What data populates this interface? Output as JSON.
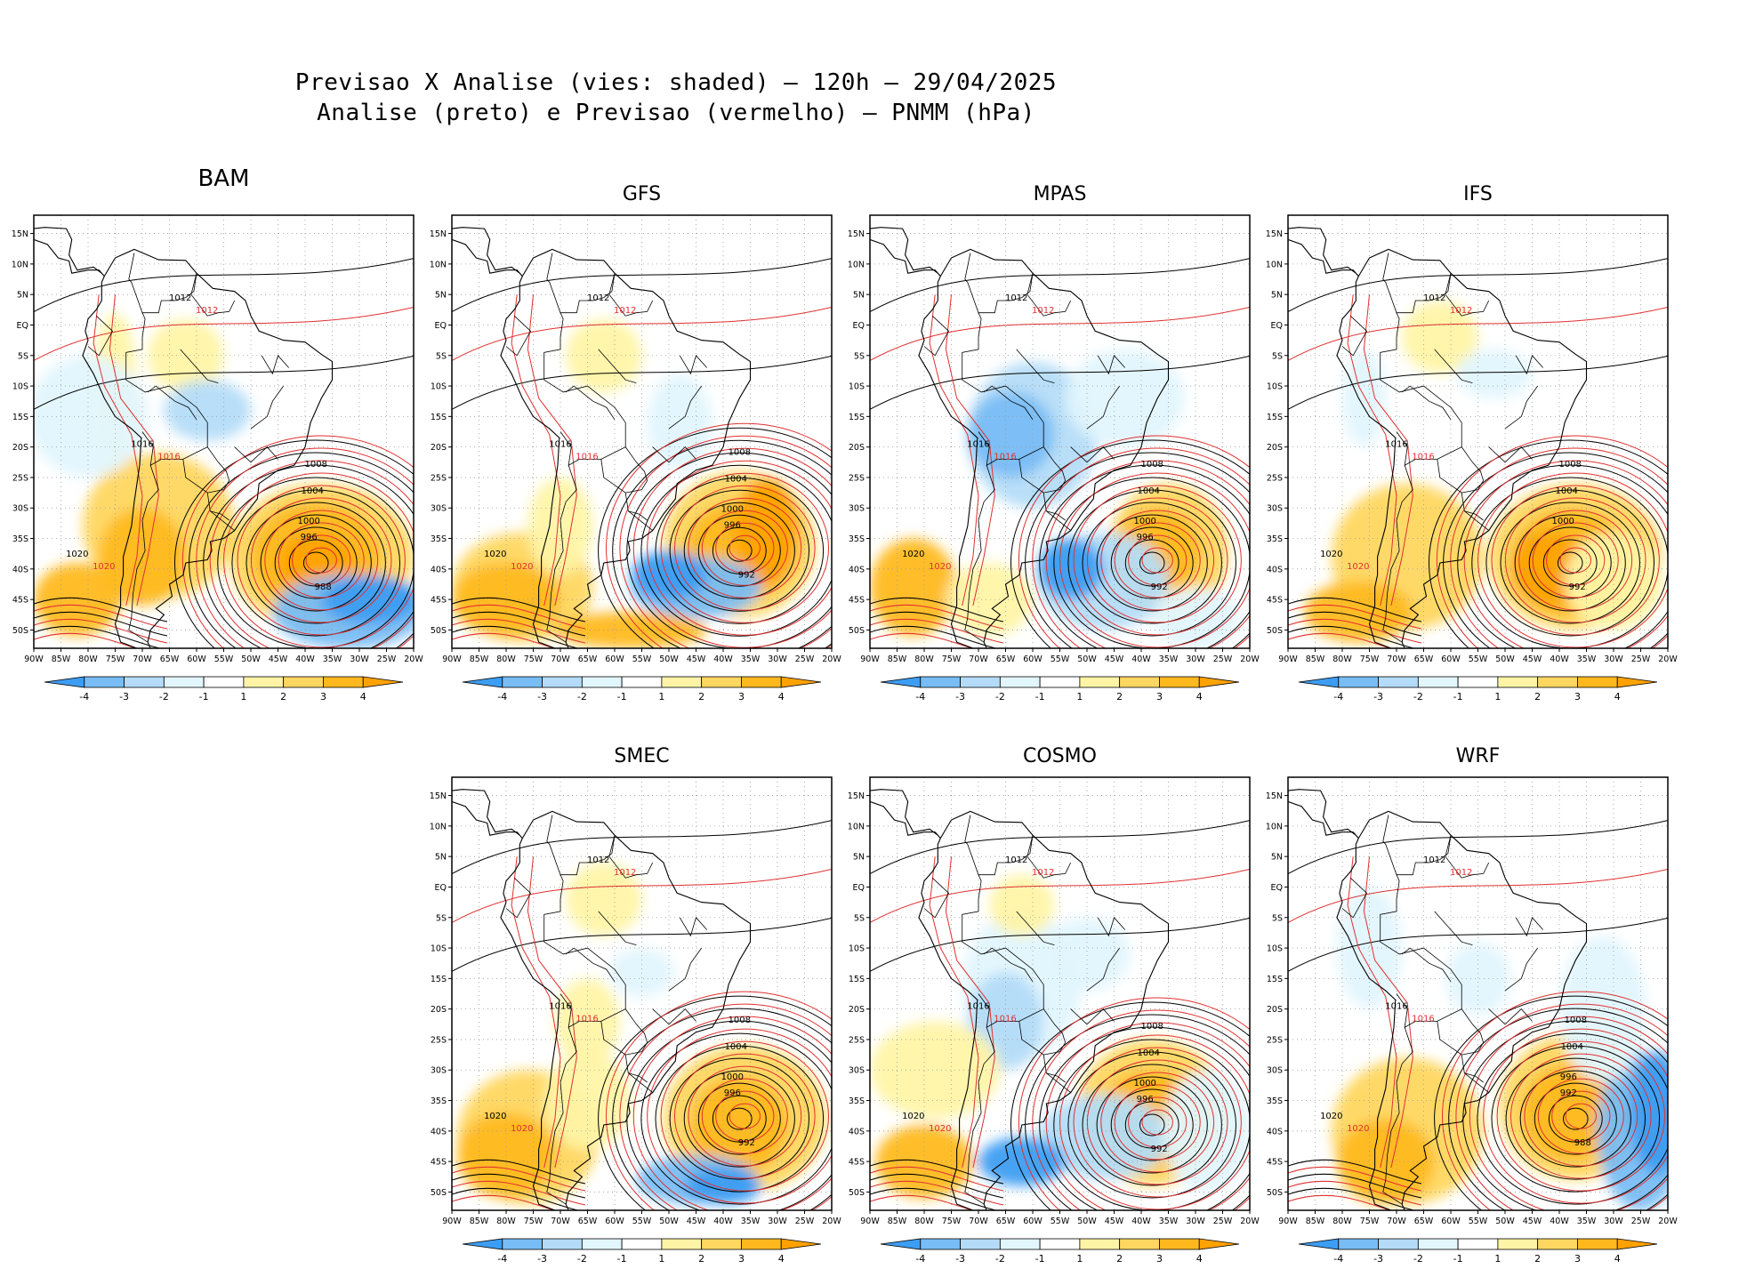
{
  "title": {
    "line1": "Previsao X Analise (vies: shaded) – 120h – 29/04/2025",
    "line2": "Analise (preto) e Previsao (vermelho) – PNMM (hPa)"
  },
  "axes": {
    "lat_labels": [
      "15N",
      "10N",
      "5N",
      "EQ",
      "5S",
      "10S",
      "15S",
      "20S",
      "25S",
      "30S",
      "35S",
      "40S",
      "45S",
      "50S"
    ],
    "lon_labels": [
      "90W",
      "85W",
      "80W",
      "75W",
      "70W",
      "65W",
      "60W",
      "55W",
      "50W",
      "45W",
      "40W",
      "35W",
      "30W",
      "25W",
      "20W"
    ]
  },
  "colorbar": {
    "labels": [
      "-4",
      "-3",
      "-2",
      "-1",
      "1",
      "2",
      "3",
      "4"
    ],
    "colors": [
      "#3d9df2",
      "#78bdf5",
      "#b4dcf8",
      "#e2f6fd",
      "#ffffff",
      "#fff4a6",
      "#ffd760",
      "#ffb91f",
      "#ffa200"
    ]
  },
  "colors": {
    "analysis": "#000000",
    "forecast": "#e03030",
    "coast": "#000000"
  },
  "panels": [
    {
      "name": "BAM",
      "isobars": {
        "center_low": "988",
        "rings": [
          "1008",
          "1004",
          "1000",
          "996"
        ],
        "other": [
          "1012",
          "1016",
          "1020"
        ]
      }
    },
    {
      "name": "GFS",
      "isobars": {
        "center_low": "992",
        "rings": [
          "1008",
          "1004",
          "1000",
          "996"
        ],
        "other": [
          "1012",
          "1016",
          "1020"
        ]
      }
    },
    {
      "name": "MPAS",
      "isobars": {
        "center_low": "992",
        "rings": [
          "1008",
          "1004",
          "1000",
          "996"
        ],
        "other": [
          "1012",
          "1016",
          "1020"
        ]
      }
    },
    {
      "name": "IFS",
      "isobars": {
        "center_low": "992",
        "rings": [
          "1008",
          "1004",
          "1000"
        ],
        "other": [
          "1012",
          "1016",
          "1020"
        ]
      }
    },
    {
      "name": "SMEC",
      "isobars": {
        "center_low": "992",
        "rings": [
          "1008",
          "1004",
          "1000",
          "996"
        ],
        "other": [
          "1012",
          "1016",
          "1020"
        ]
      }
    },
    {
      "name": "COSMO",
      "isobars": {
        "center_low": "992",
        "rings": [
          "1008",
          "1004",
          "1000",
          "996"
        ],
        "other": [
          "1012",
          "1016",
          "1020"
        ]
      }
    },
    {
      "name": "WRF",
      "isobars": {
        "center_low": "988",
        "rings": [
          "1008",
          "1004",
          "996",
          "992"
        ],
        "other": [
          "1012",
          "1016",
          "1020"
        ]
      }
    }
  ]
}
